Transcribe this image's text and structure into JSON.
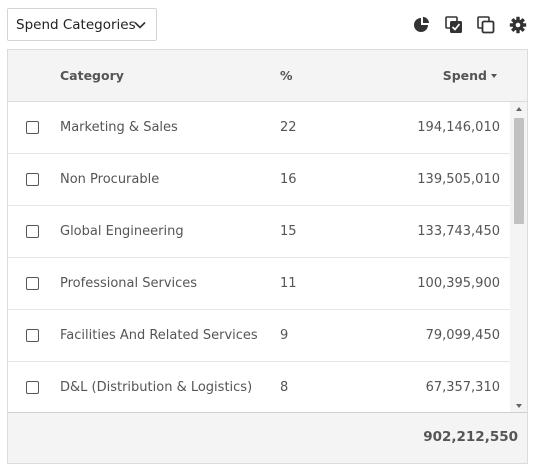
{
  "dropdown": {
    "selected": "Spend Categories",
    "icon": "chevron-down-icon"
  },
  "toolbar": {
    "icons": [
      "pie-chart-icon",
      "select-all-icon",
      "copy-icon",
      "gear-icon"
    ]
  },
  "table": {
    "headers": {
      "category": "Category",
      "percent": "%",
      "spend": "Spend"
    },
    "sort": {
      "column": "spend",
      "direction": "descending"
    },
    "rows": [
      {
        "category": "Marketing & Sales",
        "percent": "22",
        "spend": "194,146,010"
      },
      {
        "category": "Non Procurable",
        "percent": "16",
        "spend": "139,505,010"
      },
      {
        "category": "Global Engineering",
        "percent": "15",
        "spend": "133,743,450"
      },
      {
        "category": "Professional Services",
        "percent": "11",
        "spend": "100,395,900"
      },
      {
        "category": "Facilities And Related Services",
        "percent": "9",
        "spend": "79,099,450"
      },
      {
        "category": "D&L (Distribution & Logistics)",
        "percent": "8",
        "spend": "67,357,310"
      }
    ],
    "total": "902,212,550"
  },
  "colors": {
    "icon": "#333333",
    "header_bg": "#f4f4f4",
    "border": "#dcdcdc",
    "scroll_thumb": "#c1c1c1"
  }
}
